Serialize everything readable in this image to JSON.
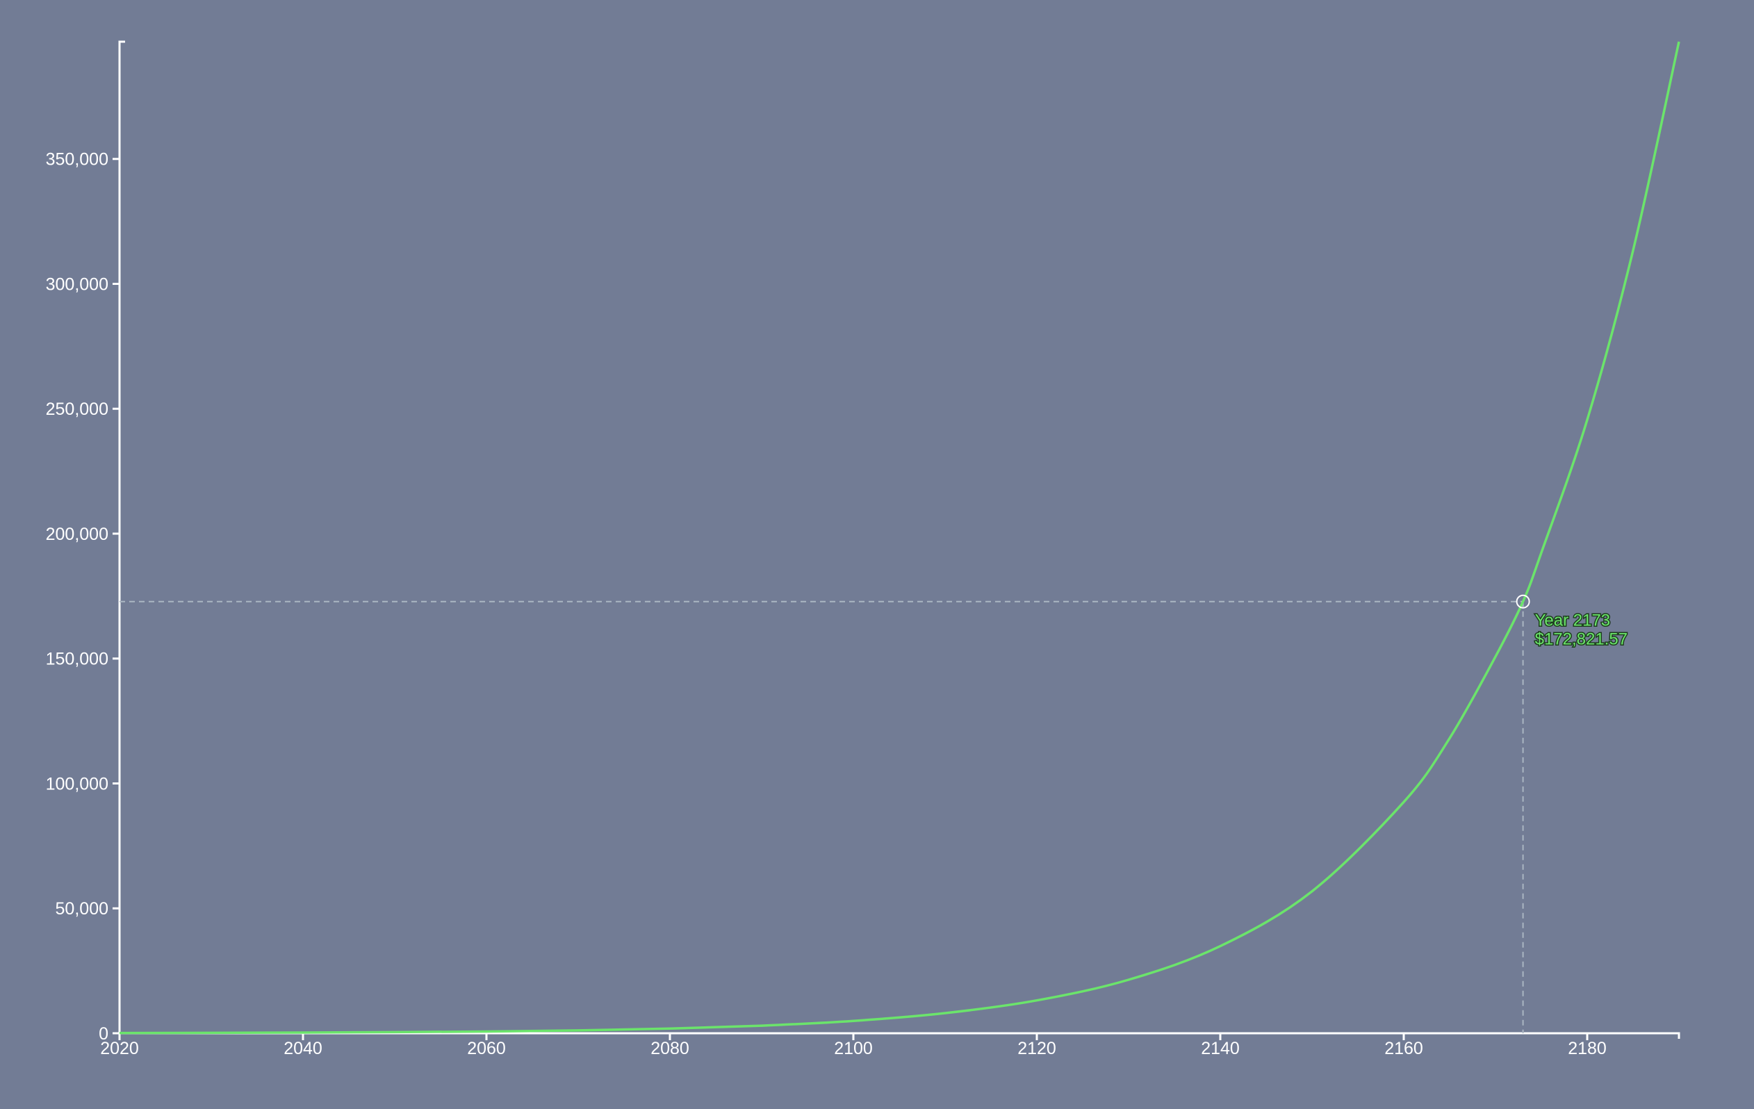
{
  "chart_data": {
    "type": "line",
    "title": "",
    "xlabel": "",
    "ylabel": "",
    "xlim": [
      2020,
      2190
    ],
    "ylim": [
      0,
      396940
    ],
    "x_ticks": [
      "2020",
      "2040",
      "2060",
      "2080",
      "2100",
      "2120",
      "2140",
      "2160",
      "2180"
    ],
    "x_tick_values": [
      2020,
      2040,
      2060,
      2080,
      2100,
      2120,
      2140,
      2160,
      2180
    ],
    "y_ticks": [
      "0",
      "50,000",
      "100,000",
      "150,000",
      "200,000",
      "250,000",
      "300,000",
      "350,000"
    ],
    "y_tick_values": [
      0,
      50000,
      100000,
      150000,
      200000,
      250000,
      300000,
      350000
    ],
    "grid": false,
    "series": [
      {
        "color": "#6be46b",
        "x": [
          2020,
          2030,
          2040,
          2050,
          2060,
          2070,
          2080,
          2090,
          2100,
          2110,
          2120,
          2130,
          2140,
          2150,
          2160,
          2165,
          2170,
          2173,
          2175,
          2180,
          2185,
          2190
        ],
        "y": [
          100,
          163,
          265,
          432,
          704,
          1147,
          1868,
          3043,
          4956,
          8072,
          13150,
          21420,
          34890,
          56830,
          92580,
          118100,
          150800,
          172821.57,
          192400,
          245600,
          313400,
          396940
        ]
      }
    ],
    "hover": {
      "x": 2173,
      "y": 172821.57,
      "year_label": "Year 2173",
      "value_label": "$172,821.57",
      "label_color": "#6be46b"
    }
  }
}
